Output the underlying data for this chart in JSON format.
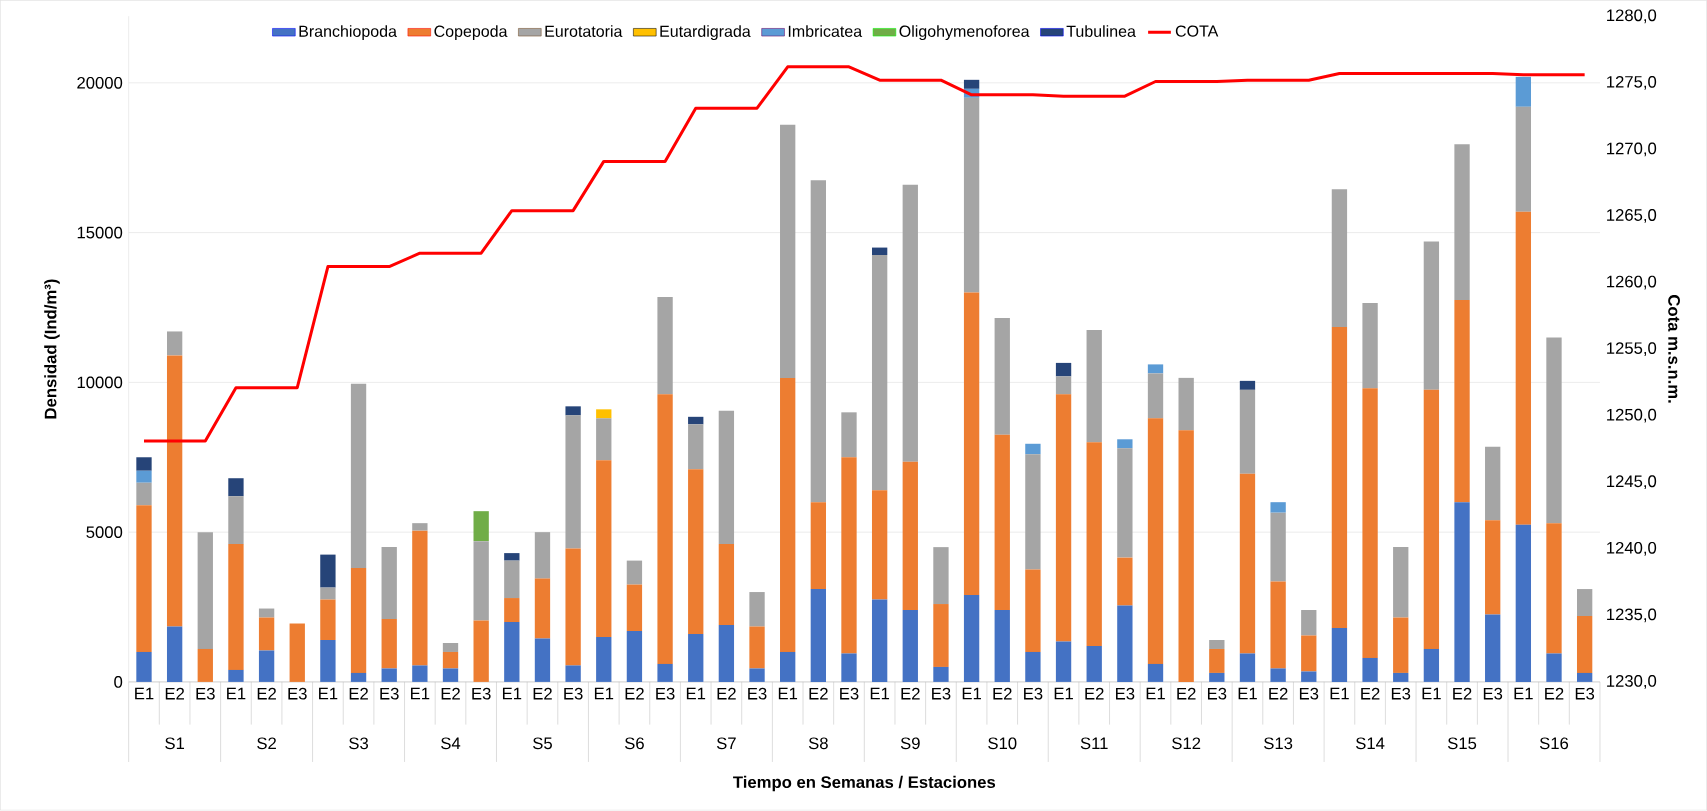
{
  "chart_data": {
    "type": "bar",
    "stacked": true,
    "grid": "y",
    "legend": "top",
    "xlabel": "Tiempo en Semanas / Estaciones",
    "ylabel": "Densidad (Ind/m³)",
    "y2label": "Cota m.s.n.m.",
    "categories": [
      "E1",
      "E2",
      "E3",
      "E1",
      "E2",
      "E3",
      "E1",
      "E2",
      "E3",
      "E1",
      "E2",
      "E3",
      "E1",
      "E2",
      "E3",
      "E1",
      "E2",
      "E3",
      "E1",
      "E2",
      "E3",
      "E1",
      "E2",
      "E3",
      "E1",
      "E2",
      "E3",
      "E1",
      "E2",
      "E3",
      "E1",
      "E2",
      "E3",
      "E1",
      "E2",
      "E3",
      "E1",
      "E2",
      "E3",
      "E1",
      "E2",
      "E3",
      "E1",
      "E2",
      "E3",
      "E1",
      "E2",
      "E3"
    ],
    "annotations": [
      "S1",
      "S2",
      "S3",
      "S4",
      "S5",
      "S6",
      "S7",
      "S8",
      "S9",
      "S10",
      "S11",
      "S12",
      "S13",
      "S14",
      "S15",
      "S16"
    ],
    "ylim": [
      0,
      22222
    ],
    "yticks": [
      0,
      5000,
      10000,
      15000,
      20000
    ],
    "y2lim": [
      1230,
      1280
    ],
    "y2ticks": [
      {
        "value": 1230,
        "label": "1230,0"
      },
      {
        "value": 1235,
        "label": "1235,0"
      },
      {
        "value": 1240,
        "label": "1240,0"
      },
      {
        "value": 1245,
        "label": "1245,0"
      },
      {
        "value": 1250,
        "label": "1250,0"
      },
      {
        "value": 1255,
        "label": "1255,0"
      },
      {
        "value": 1260,
        "label": "1260,0"
      },
      {
        "value": 1265,
        "label": "1265,0"
      },
      {
        "value": 1270,
        "label": "1270,0"
      },
      {
        "value": 1275,
        "label": "1275,0"
      },
      {
        "value": 1280,
        "label": "1280,0"
      }
    ],
    "series": [
      {
        "name": "Branchiopoda",
        "color": "#4472c4",
        "values": [
          1000,
          1850,
          0,
          400,
          1050,
          0,
          1400,
          300,
          450,
          550,
          450,
          0,
          2000,
          1450,
          550,
          1500,
          1700,
          600,
          1600,
          1900,
          450,
          1000,
          3100,
          950,
          2750,
          2400,
          500,
          2900,
          2400,
          1000,
          1350,
          1200,
          2550,
          600,
          0,
          300,
          950,
          450,
          350,
          1800,
          800,
          300,
          1100,
          6000,
          2250,
          5250,
          950,
          300
        ]
      },
      {
        "name": "Copepoda",
        "color": "#ed7d31",
        "values": [
          4900,
          9050,
          1100,
          4200,
          1100,
          1950,
          1350,
          3500,
          1650,
          4500,
          550,
          2050,
          800,
          2000,
          3900,
          5900,
          1550,
          9000,
          5500,
          2700,
          1400,
          9150,
          2900,
          6550,
          3650,
          4950,
          2100,
          10100,
          5850,
          2750,
          8250,
          6800,
          1600,
          8200,
          8400,
          800,
          6000,
          2900,
          1200,
          10050,
          9000,
          1850,
          8650,
          6750,
          3150,
          10450,
          4350,
          1900
        ]
      },
      {
        "name": "Eurotatoria",
        "color": "#a5a5a5",
        "values": [
          750,
          800,
          3900,
          1600,
          300,
          0,
          400,
          6150,
          2400,
          250,
          300,
          2650,
          1250,
          1550,
          4450,
          1400,
          800,
          3250,
          1500,
          4450,
          1150,
          8450,
          10750,
          1500,
          7850,
          9250,
          1900,
          6500,
          3900,
          3850,
          600,
          3750,
          3650,
          1500,
          1750,
          300,
          2800,
          2300,
          850,
          4600,
          2850,
          2350,
          4950,
          5200,
          2450,
          3500,
          6200,
          900
        ]
      },
      {
        "name": "Eutardigrada",
        "color": "#ffc000",
        "values": [
          0,
          0,
          0,
          0,
          0,
          0,
          0,
          0,
          0,
          0,
          0,
          0,
          0,
          0,
          0,
          300,
          0,
          0,
          0,
          0,
          0,
          0,
          0,
          0,
          0,
          0,
          0,
          0,
          0,
          0,
          0,
          0,
          0,
          0,
          0,
          0,
          0,
          0,
          0,
          0,
          0,
          0,
          0,
          0,
          0,
          0,
          0,
          0
        ]
      },
      {
        "name": "Imbricatea",
        "color": "#5b9bd5",
        "values": [
          400,
          0,
          0,
          0,
          0,
          0,
          0,
          0,
          0,
          0,
          0,
          0,
          0,
          0,
          0,
          0,
          0,
          0,
          0,
          0,
          0,
          0,
          0,
          0,
          0,
          0,
          0,
          300,
          0,
          350,
          0,
          0,
          300,
          300,
          0,
          0,
          0,
          350,
          0,
          0,
          0,
          0,
          0,
          0,
          0,
          1000,
          0,
          0
        ]
      },
      {
        "name": "Oligohymenoforea",
        "color": "#70ad47",
        "values": [
          0,
          0,
          0,
          0,
          0,
          0,
          0,
          0,
          0,
          0,
          0,
          1000,
          0,
          0,
          0,
          0,
          0,
          0,
          0,
          0,
          0,
          0,
          0,
          0,
          0,
          0,
          0,
          0,
          0,
          0,
          0,
          0,
          0,
          0,
          0,
          0,
          0,
          0,
          0,
          0,
          0,
          0,
          0,
          0,
          0,
          0,
          0,
          0
        ]
      },
      {
        "name": "Tubulinea",
        "color": "#264478",
        "values": [
          450,
          0,
          0,
          600,
          0,
          0,
          1100,
          0,
          0,
          0,
          0,
          0,
          250,
          0,
          300,
          0,
          0,
          0,
          250,
          0,
          0,
          0,
          0,
          0,
          250,
          0,
          0,
          300,
          0,
          0,
          450,
          0,
          0,
          0,
          0,
          0,
          300,
          0,
          0,
          0,
          0,
          0,
          0,
          0,
          0,
          0,
          0,
          0
        ]
      },
      {
        "name": "COTA",
        "color": "#ff0000",
        "type": "line",
        "axis": "y2",
        "values": [
          1248.1,
          1248.1,
          1248.1,
          1252.1,
          1252.1,
          1252.1,
          1261.2,
          1261.2,
          1261.2,
          1262.2,
          1262.2,
          1262.2,
          1265.4,
          1265.4,
          1265.4,
          1269.1,
          1269.1,
          1269.1,
          1273.1,
          1273.1,
          1273.1,
          1276.2,
          1276.2,
          1276.2,
          1275.2,
          1275.2,
          1275.2,
          1274.1,
          1274.1,
          1274.1,
          1274.0,
          1274.0,
          1274.0,
          1275.1,
          1275.1,
          1275.1,
          1275.2,
          1275.2,
          1275.2,
          1275.7,
          1275.7,
          1275.7,
          1275.7,
          1275.7,
          1275.7,
          1275.6,
          1275.6,
          1275.6
        ]
      }
    ]
  }
}
